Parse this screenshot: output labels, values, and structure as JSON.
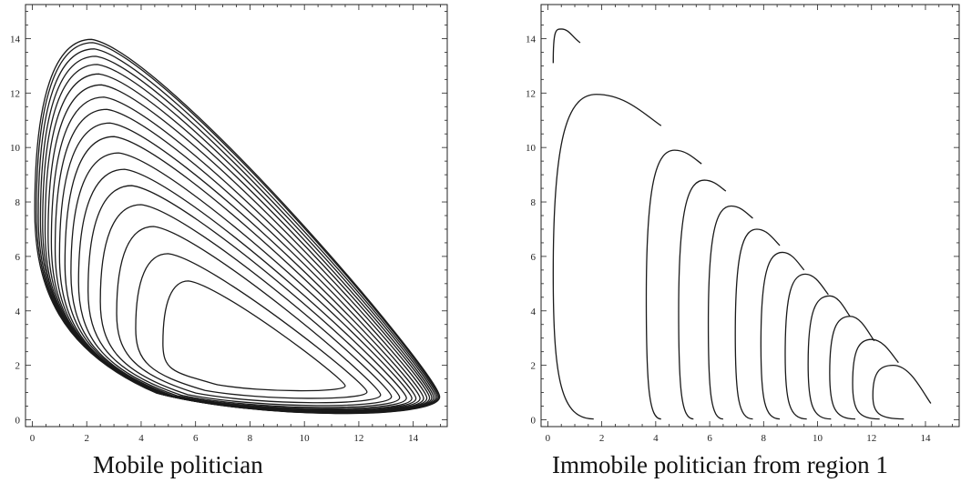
{
  "chart_data": [
    {
      "type": "contour",
      "caption": "Mobile politician",
      "xlim": [
        0,
        15
      ],
      "ylim": [
        0,
        15
      ],
      "xticks": [
        "0",
        "2",
        "4",
        "6",
        "8",
        "10",
        "12",
        "14"
      ],
      "yticks": [
        "0",
        "2",
        "4",
        "6",
        "8",
        "10",
        "12",
        "14"
      ],
      "contours": [
        {
          "x_min": 4.8,
          "x_max": 11.5,
          "y_min": 1.0,
          "y_max": 5.1
        },
        {
          "x_min": 3.8,
          "x_max": 12.3,
          "y_min": 0.7,
          "y_max": 6.1
        },
        {
          "x_min": 3.1,
          "x_max": 12.8,
          "y_min": 0.52,
          "y_max": 7.1
        },
        {
          "x_min": 2.5,
          "x_max": 13.2,
          "y_min": 0.4,
          "y_max": 7.9
        },
        {
          "x_min": 2.05,
          "x_max": 13.5,
          "y_min": 0.32,
          "y_max": 8.6
        },
        {
          "x_min": 1.7,
          "x_max": 13.75,
          "y_min": 0.26,
          "y_max": 9.2
        },
        {
          "x_min": 1.42,
          "x_max": 13.95,
          "y_min": 0.21,
          "y_max": 9.8
        },
        {
          "x_min": 1.2,
          "x_max": 14.1,
          "y_min": 0.17,
          "y_max": 10.4
        },
        {
          "x_min": 1.0,
          "x_max": 14.25,
          "y_min": 0.14,
          "y_max": 10.9
        },
        {
          "x_min": 0.84,
          "x_max": 14.38,
          "y_min": 0.11,
          "y_max": 11.4
        },
        {
          "x_min": 0.7,
          "x_max": 14.5,
          "y_min": 0.09,
          "y_max": 11.85
        },
        {
          "x_min": 0.58,
          "x_max": 14.6,
          "y_min": 0.07,
          "y_max": 12.3
        },
        {
          "x_min": 0.47,
          "x_max": 14.68,
          "y_min": 0.055,
          "y_max": 12.7
        },
        {
          "x_min": 0.38,
          "x_max": 14.75,
          "y_min": 0.04,
          "y_max": 13.05
        },
        {
          "x_min": 0.3,
          "x_max": 14.82,
          "y_min": 0.03,
          "y_max": 13.35
        },
        {
          "x_min": 0.22,
          "x_max": 14.88,
          "y_min": 0.02,
          "y_max": 13.62
        },
        {
          "x_min": 0.15,
          "x_max": 14.93,
          "y_min": 0.012,
          "y_max": 13.85
        },
        {
          "x_min": 0.09,
          "x_max": 14.97,
          "y_min": 0.006,
          "y_max": 13.97
        }
      ]
    },
    {
      "type": "contour",
      "caption": "Immobile politician from region 1",
      "xlim": [
        0,
        15
      ],
      "ylim": [
        0,
        15
      ],
      "xticks": [
        "0",
        "2",
        "4",
        "6",
        "8",
        "10",
        "12",
        "14"
      ],
      "yticks": [
        "0",
        "2",
        "4",
        "6",
        "8",
        "10",
        "12",
        "14"
      ],
      "contours": [
        {
          "x_min": 0.2,
          "peak": [
            0.5,
            14.35
          ],
          "end": [
            1.2,
            13.85
          ],
          "y_bottom": 13.1
        },
        {
          "x_min": 0.2,
          "peak": [
            1.8,
            11.95
          ],
          "end": [
            4.2,
            10.8
          ],
          "x_bottom": 1.7
        },
        {
          "x_min": 3.65,
          "peak": [
            4.7,
            9.9
          ],
          "end": [
            5.7,
            9.4
          ],
          "x_bottom": 4.2
        },
        {
          "x_min": 4.85,
          "peak": [
            5.8,
            8.8
          ],
          "end": [
            6.6,
            8.4
          ],
          "x_bottom": 5.4
        },
        {
          "x_min": 5.95,
          "peak": [
            6.8,
            7.85
          ],
          "end": [
            7.6,
            7.4
          ],
          "x_bottom": 6.5
        },
        {
          "x_min": 6.95,
          "peak": [
            7.75,
            7.0
          ],
          "end": [
            8.6,
            6.4
          ],
          "x_bottom": 7.6
        },
        {
          "x_min": 7.9,
          "peak": [
            8.7,
            6.15
          ],
          "end": [
            9.5,
            5.5
          ],
          "x_bottom": 8.6
        },
        {
          "x_min": 8.8,
          "peak": [
            9.55,
            5.35
          ],
          "end": [
            10.4,
            4.6
          ],
          "x_bottom": 9.6
        },
        {
          "x_min": 9.65,
          "peak": [
            10.45,
            4.55
          ],
          "end": [
            11.2,
            3.8
          ],
          "x_bottom": 10.5
        },
        {
          "x_min": 10.45,
          "peak": [
            11.2,
            3.8
          ],
          "end": [
            12.1,
            2.9
          ],
          "x_bottom": 11.4
        },
        {
          "x_min": 11.3,
          "peak": [
            12.0,
            2.95
          ],
          "end": [
            13.0,
            2.1
          ],
          "x_bottom": 12.3
        },
        {
          "x_min": 12.05,
          "peak": [
            12.8,
            2.0
          ],
          "end": [
            14.2,
            0.6
          ],
          "x_bottom": 13.2
        }
      ]
    }
  ]
}
